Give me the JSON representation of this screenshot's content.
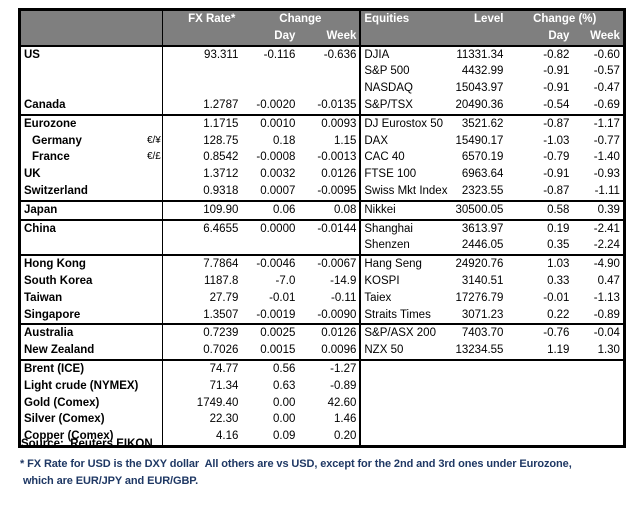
{
  "chart_data": {
    "type": "table",
    "header": {
      "fx_rate": "FX Rate*",
      "fx_change": "Change",
      "fx_day": "Day",
      "fx_week": "Week",
      "equities": "Equities",
      "level": "Level",
      "eq_change": "Change (%)",
      "eq_day": "Day",
      "eq_week": "Week"
    },
    "rows": [
      {
        "label": "US",
        "indent": false,
        "pair": "",
        "fx": "93.311",
        "fx_day": "-0.116",
        "fx_week": "-0.636",
        "equity": "DJIA",
        "level": "11331.34",
        "eq_day": "-0.82",
        "eq_week": "-0.60",
        "sep": false
      },
      {
        "label": "",
        "indent": false,
        "pair": "",
        "fx": "",
        "fx_day": "",
        "fx_week": "",
        "equity": "S&P 500",
        "level": "4432.99",
        "eq_day": "-0.91",
        "eq_week": "-0.57",
        "sep": false
      },
      {
        "label": "",
        "indent": false,
        "pair": "",
        "fx": "",
        "fx_day": "",
        "fx_week": "",
        "equity": "NASDAQ",
        "level": "15043.97",
        "eq_day": "-0.91",
        "eq_week": "-0.47",
        "sep": false
      },
      {
        "label": "Canada",
        "indent": false,
        "pair": "",
        "fx": "1.2787",
        "fx_day": "-0.0020",
        "fx_week": "-0.0135",
        "equity": "S&P/TSX",
        "level": "20490.36",
        "eq_day": "-0.54",
        "eq_week": "-0.69",
        "sep": false
      },
      {
        "label": "Eurozone",
        "indent": false,
        "pair": "",
        "fx": "1.1715",
        "fx_day": "0.0010",
        "fx_week": "0.0093",
        "equity": "DJ Eurostox 50",
        "level": "3521.62",
        "eq_day": "-0.87",
        "eq_week": "-1.17",
        "sep": true
      },
      {
        "label": "Germany",
        "indent": true,
        "pair": "€/¥",
        "fx": "128.75",
        "fx_day": "0.18",
        "fx_week": "1.15",
        "equity": "DAX",
        "level": "15490.17",
        "eq_day": "-1.03",
        "eq_week": "-0.77",
        "sep": false
      },
      {
        "label": "France",
        "indent": true,
        "pair": "€/£",
        "fx": "0.8542",
        "fx_day": "-0.0008",
        "fx_week": "-0.0013",
        "equity": "CAC 40",
        "level": "6570.19",
        "eq_day": "-0.79",
        "eq_week": "-1.40",
        "sep": false
      },
      {
        "label": "UK",
        "indent": false,
        "pair": "",
        "fx": "1.3712",
        "fx_day": "0.0032",
        "fx_week": "0.0126",
        "equity": "FTSE 100",
        "level": "6963.64",
        "eq_day": "-0.91",
        "eq_week": "-0.93",
        "sep": false
      },
      {
        "label": "Switzerland",
        "indent": false,
        "pair": "",
        "fx": "0.9318",
        "fx_day": "0.0007",
        "fx_week": "-0.0095",
        "equity": "Swiss Mkt Index",
        "level": "2323.55",
        "eq_day": "-0.87",
        "eq_week": "-1.11",
        "sep": false
      },
      {
        "label": "Japan",
        "indent": false,
        "pair": "",
        "fx": "109.90",
        "fx_day": "0.06",
        "fx_week": "0.08",
        "equity": "Nikkei",
        "level": "30500.05",
        "eq_day": "0.58",
        "eq_week": "0.39",
        "sep": true
      },
      {
        "label": "China",
        "indent": false,
        "pair": "",
        "fx": "6.4655",
        "fx_day": "0.0000",
        "fx_week": "-0.0144",
        "equity": "Shanghai",
        "level": "3613.97",
        "eq_day": "0.19",
        "eq_week": "-2.41",
        "sep": true
      },
      {
        "label": "",
        "indent": false,
        "pair": "",
        "fx": "",
        "fx_day": "",
        "fx_week": "",
        "equity": "Shenzen",
        "level": "2446.05",
        "eq_day": "0.35",
        "eq_week": "-2.24",
        "sep": false
      },
      {
        "label": "Hong Kong",
        "indent": false,
        "pair": "",
        "fx": "7.7864",
        "fx_day": "-0.0046",
        "fx_week": "-0.0067",
        "equity": "Hang Seng",
        "level": "24920.76",
        "eq_day": "1.03",
        "eq_week": "-4.90",
        "sep": true
      },
      {
        "label": "South Korea",
        "indent": false,
        "pair": "",
        "fx": "1187.8",
        "fx_day": "-7.0",
        "fx_week": "-14.9",
        "equity": "KOSPI",
        "level": "3140.51",
        "eq_day": "0.33",
        "eq_week": "0.47",
        "sep": false
      },
      {
        "label": "Taiwan",
        "indent": false,
        "pair": "",
        "fx": "27.79",
        "fx_day": "-0.01",
        "fx_week": "-0.11",
        "equity": "Taiex",
        "level": "17276.79",
        "eq_day": "-0.01",
        "eq_week": "-1.13",
        "sep": false
      },
      {
        "label": "Singapore",
        "indent": false,
        "pair": "",
        "fx": "1.3507",
        "fx_day": "-0.0019",
        "fx_week": "-0.0090",
        "equity": "Straits Times",
        "level": "3071.23",
        "eq_day": "0.22",
        "eq_week": "-0.89",
        "sep": false
      },
      {
        "label": "Australia",
        "indent": false,
        "pair": "",
        "fx": "0.7239",
        "fx_day": "0.0025",
        "fx_week": "0.0126",
        "equity": "S&P/ASX  200",
        "level": "7403.70",
        "eq_day": "-0.76",
        "eq_week": "-0.04",
        "sep": true
      },
      {
        "label": "New Zealand",
        "indent": false,
        "pair": "",
        "fx": "0.7026",
        "fx_day": "0.0015",
        "fx_week": "0.0096",
        "equity": "NZX 50",
        "level": "13234.55",
        "eq_day": "1.19",
        "eq_week": "1.30",
        "sep": false
      },
      {
        "label": "Brent (ICE)",
        "indent": false,
        "pair": "",
        "fx": "74.77",
        "fx_day": "0.56",
        "fx_week": "-1.27",
        "equity": "",
        "level": "",
        "eq_day": "",
        "eq_week": "",
        "sep": true
      },
      {
        "label": "Light crude (NYMEX)",
        "indent": false,
        "pair": "",
        "fx": "71.34",
        "fx_day": "0.63",
        "fx_week": "-0.89",
        "equity": "",
        "level": "",
        "eq_day": "",
        "eq_week": "",
        "sep": false
      },
      {
        "label": "Gold (Comex)",
        "indent": false,
        "pair": "",
        "fx": "1749.40",
        "fx_day": "0.00",
        "fx_week": "42.60",
        "equity": "",
        "level": "",
        "eq_day": "",
        "eq_week": "",
        "sep": false
      },
      {
        "label": "Silver (Comex)",
        "indent": false,
        "pair": "",
        "fx": "22.30",
        "fx_day": "0.00",
        "fx_week": "1.46",
        "equity": "",
        "level": "",
        "eq_day": "",
        "eq_week": "",
        "sep": false
      },
      {
        "label": "Copper (Comex)",
        "indent": false,
        "pair": "",
        "fx": "4.16",
        "fx_day": "0.09",
        "fx_week": "0.20",
        "equity": "",
        "level": "",
        "eq_day": "",
        "eq_week": "",
        "sep": false
      }
    ]
  },
  "source_line": "Source:  Reuters EIKON.",
  "footnotes": {
    "line1": "* FX Rate for USD is the DXY dollar  All others are vs USD, except for the 2nd and 3rd ones under Eurozone,",
    "line2": " which are EUR/JPY and EUR/GBP."
  },
  "colors": {
    "header_bg": "#7f7f7f",
    "header_text": "#ffffff",
    "body_text": "#000000",
    "footnote_text": "#1f3864",
    "border": "#000000"
  }
}
